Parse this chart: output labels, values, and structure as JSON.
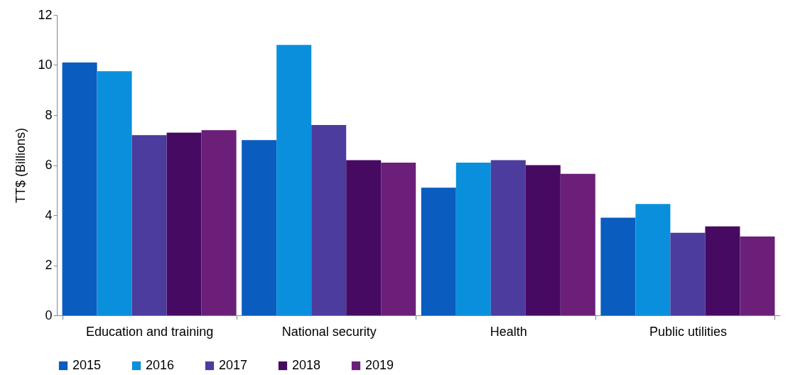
{
  "chart_data": {
    "type": "bar",
    "ylabel": "TT$ (Billions)",
    "categories": [
      "Education and training",
      "National security",
      "Health",
      "Public utilities"
    ],
    "series": [
      {
        "name": "2015",
        "color": "#0a5cbf",
        "values": [
          10.1,
          7.0,
          5.1,
          3.9
        ]
      },
      {
        "name": "2016",
        "color": "#0a8fdc",
        "values": [
          9.75,
          10.8,
          6.1,
          4.45
        ]
      },
      {
        "name": "2017",
        "color": "#4b3c9e",
        "values": [
          7.2,
          7.6,
          6.2,
          3.3
        ]
      },
      {
        "name": "2018",
        "color": "#470a62",
        "values": [
          7.3,
          6.2,
          6.0,
          3.55
        ]
      },
      {
        "name": "2019",
        "color": "#6b1f79",
        "values": [
          7.4,
          6.1,
          5.65,
          3.15
        ]
      }
    ],
    "ylim": [
      0,
      12
    ],
    "yticks": [
      0,
      2,
      4,
      6,
      8,
      10,
      12
    ],
    "grid": false,
    "legend": "bottom"
  }
}
